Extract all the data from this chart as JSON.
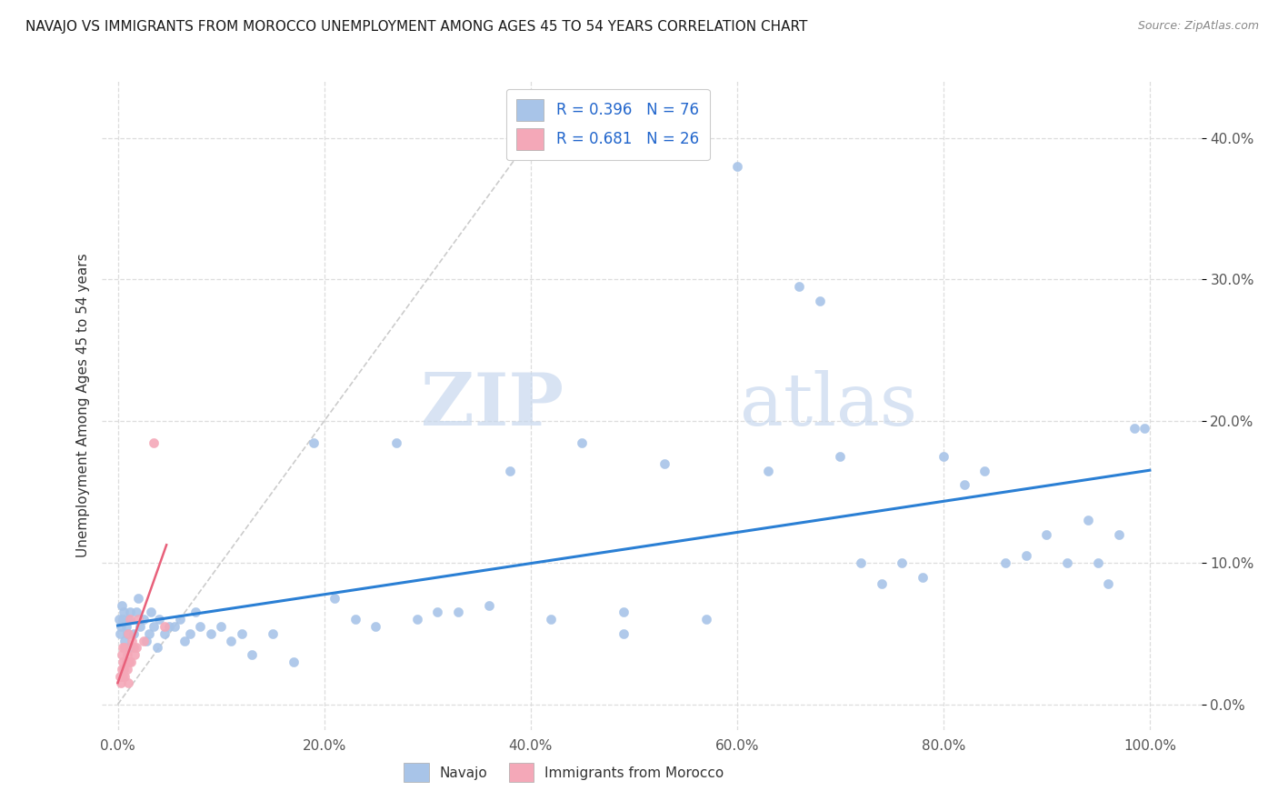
{
  "title": "NAVAJO VS IMMIGRANTS FROM MOROCCO UNEMPLOYMENT AMONG AGES 45 TO 54 YEARS CORRELATION CHART",
  "source": "Source: ZipAtlas.com",
  "ylabel_label": "Unemployment Among Ages 45 to 54 years",
  "legend_label1": "Navajo",
  "legend_label2": "Immigrants from Morocco",
  "R1": 0.396,
  "N1": 76,
  "R2": 0.681,
  "N2": 26,
  "color_navajo": "#a8c4e8",
  "color_morocco": "#f4a8b8",
  "color_regression_navajo": "#2a7fd4",
  "color_regression_morocco": "#e8607a",
  "watermark_zip": "ZIP",
  "watermark_atlas": "atlas",
  "navajo_x": [
    0.001,
    0.002,
    0.003,
    0.004,
    0.005,
    0.006,
    0.007,
    0.008,
    0.009,
    0.01,
    0.011,
    0.012,
    0.015,
    0.018,
    0.02,
    0.022,
    0.025,
    0.028,
    0.03,
    0.032,
    0.035,
    0.038,
    0.04,
    0.045,
    0.05,
    0.055,
    0.06,
    0.065,
    0.07,
    0.075,
    0.08,
    0.09,
    0.1,
    0.11,
    0.12,
    0.13,
    0.15,
    0.17,
    0.19,
    0.21,
    0.23,
    0.25,
    0.27,
    0.29,
    0.31,
    0.33,
    0.36,
    0.38,
    0.42,
    0.45,
    0.49,
    0.49,
    0.53,
    0.57,
    0.6,
    0.63,
    0.66,
    0.68,
    0.7,
    0.72,
    0.74,
    0.76,
    0.78,
    0.8,
    0.82,
    0.84,
    0.86,
    0.88,
    0.9,
    0.92,
    0.94,
    0.95,
    0.96,
    0.97,
    0.985,
    0.995
  ],
  "navajo_y": [
    0.06,
    0.05,
    0.055,
    0.07,
    0.06,
    0.065,
    0.045,
    0.055,
    0.05,
    0.06,
    0.04,
    0.065,
    0.05,
    0.065,
    0.075,
    0.055,
    0.06,
    0.045,
    0.05,
    0.065,
    0.055,
    0.04,
    0.06,
    0.05,
    0.055,
    0.055,
    0.06,
    0.045,
    0.05,
    0.065,
    0.055,
    0.05,
    0.055,
    0.045,
    0.05,
    0.035,
    0.05,
    0.03,
    0.185,
    0.075,
    0.06,
    0.055,
    0.185,
    0.06,
    0.065,
    0.065,
    0.07,
    0.165,
    0.06,
    0.185,
    0.065,
    0.05,
    0.17,
    0.06,
    0.38,
    0.165,
    0.295,
    0.285,
    0.175,
    0.1,
    0.085,
    0.1,
    0.09,
    0.175,
    0.155,
    0.165,
    0.1,
    0.105,
    0.12,
    0.1,
    0.13,
    0.1,
    0.085,
    0.12,
    0.195,
    0.195
  ],
  "morocco_x": [
    0.002,
    0.003,
    0.004,
    0.004,
    0.005,
    0.005,
    0.005,
    0.006,
    0.007,
    0.007,
    0.008,
    0.009,
    0.009,
    0.01,
    0.01,
    0.011,
    0.012,
    0.013,
    0.014,
    0.015,
    0.016,
    0.018,
    0.02,
    0.025,
    0.035,
    0.045
  ],
  "morocco_y": [
    0.02,
    0.015,
    0.025,
    0.035,
    0.02,
    0.03,
    0.04,
    0.025,
    0.02,
    0.04,
    0.03,
    0.025,
    0.035,
    0.015,
    0.05,
    0.03,
    0.06,
    0.03,
    0.045,
    0.04,
    0.035,
    0.04,
    0.06,
    0.045,
    0.185,
    0.055
  ],
  "diag_line_x": [
    0.0,
    0.42
  ],
  "diag_line_y": [
    0.0,
    0.42
  ],
  "xlim": [
    -0.015,
    1.05
  ],
  "ylim": [
    -0.018,
    0.44
  ],
  "xtick_vals": [
    0.0,
    0.2,
    0.4,
    0.6,
    0.8,
    1.0
  ],
  "ytick_vals": [
    0.0,
    0.1,
    0.2,
    0.3,
    0.4
  ]
}
